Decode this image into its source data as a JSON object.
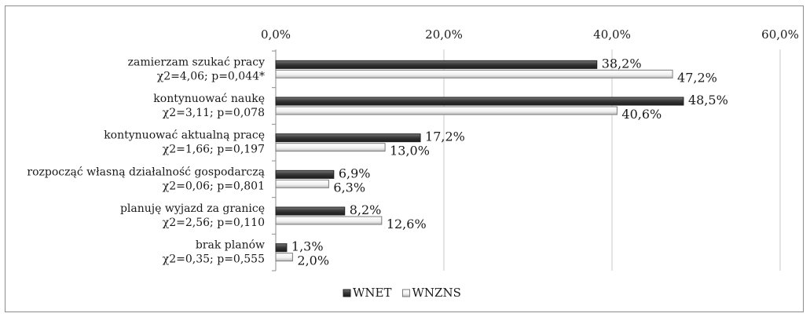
{
  "chart_data": {
    "type": "bar",
    "orientation": "horizontal",
    "xlim": [
      0,
      60
    ],
    "x_ticks": [
      "0,0%",
      "20,0%",
      "40,0%",
      "60,0%"
    ],
    "grid": true,
    "legend_position": "bottom",
    "categories": [
      [
        "zamierzam szukać pracy",
        "χ2=4,06; p=0,044*"
      ],
      [
        "kontynuować naukę",
        "χ2=3,11; p=0,078"
      ],
      [
        "kontynuować aktualną pracę",
        "χ2=1,66; p=0,197"
      ],
      [
        "rozpocząć własną działalność gospodarczą",
        "χ2=0,06; p=0,801"
      ],
      [
        "planuję wyjazd za granicę",
        "χ2=2,56; p=0,110"
      ],
      [
        "brak planów",
        "χ2=0,35; p=0,555"
      ]
    ],
    "series": [
      {
        "name": "WNET",
        "color": "#404040",
        "values": [
          38.2,
          48.5,
          17.2,
          6.9,
          8.2,
          1.3
        ],
        "labels": [
          "38,2%",
          "48,5%",
          "17,2%",
          "6,9%",
          "8,2%",
          "1,3%"
        ]
      },
      {
        "name": "WNZNS",
        "color": "#f2f2f2",
        "values": [
          47.2,
          40.6,
          13.0,
          6.3,
          12.6,
          2.0
        ],
        "labels": [
          "47,2%",
          "40,6%",
          "13,0%",
          "6,3%",
          "12,6%",
          "2,0%"
        ]
      }
    ]
  }
}
